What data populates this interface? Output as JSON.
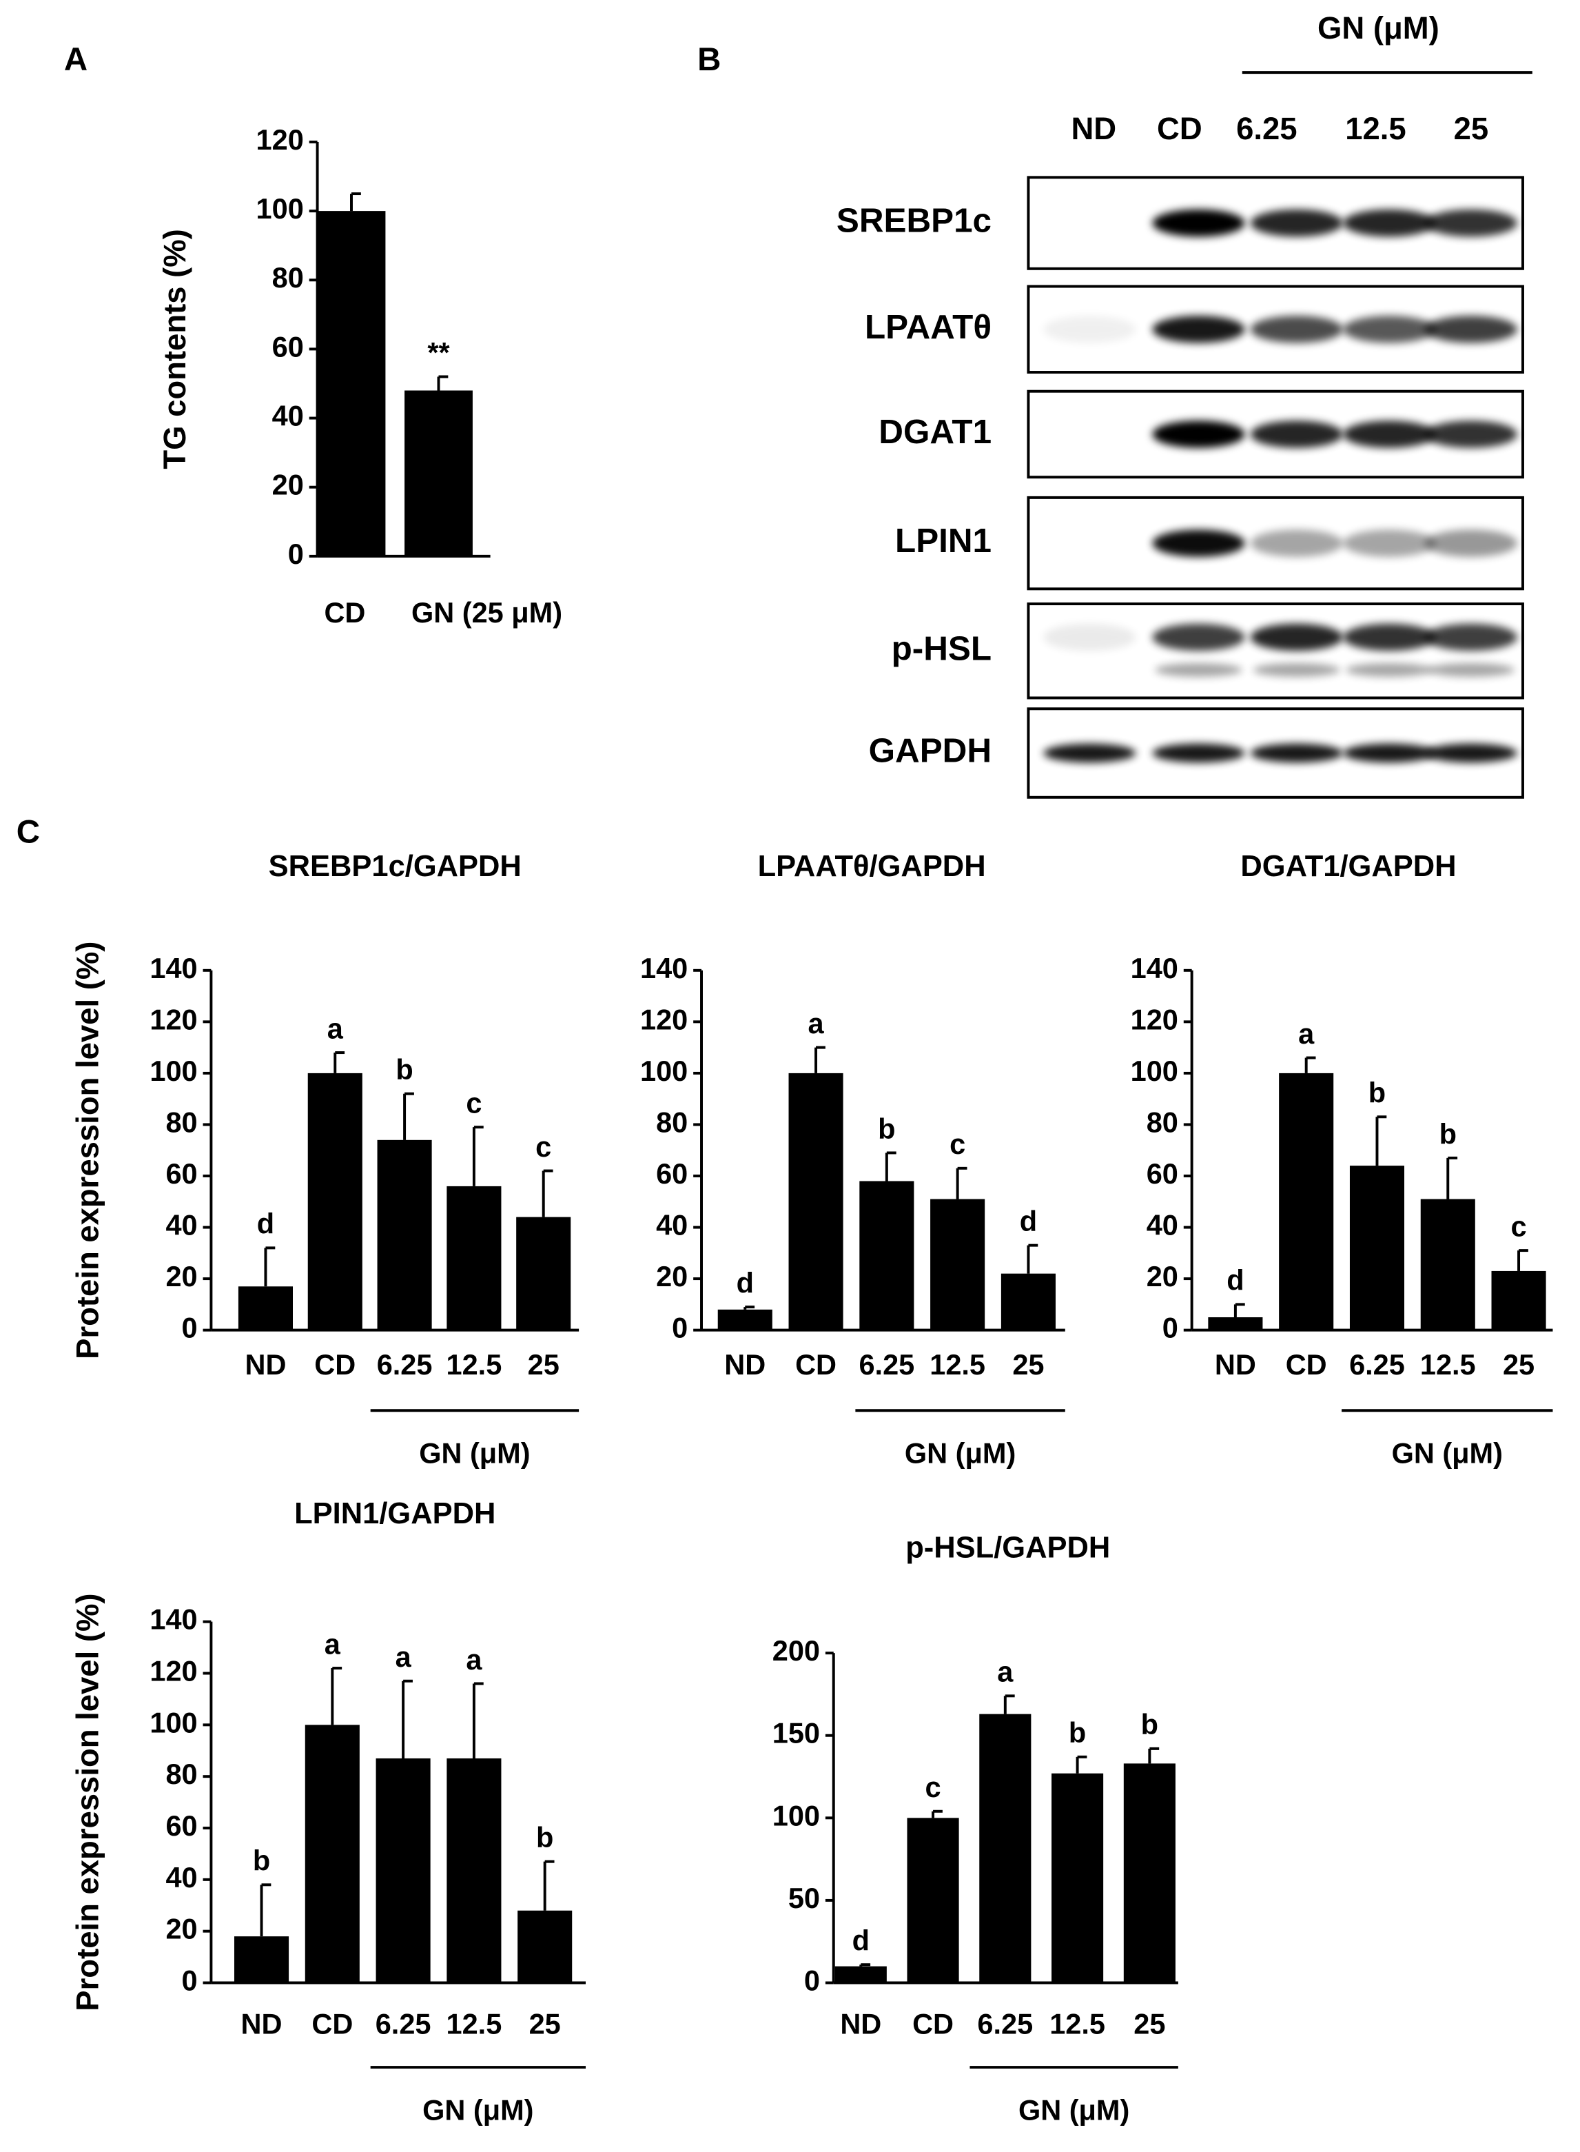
{
  "panels": [
    "A",
    "B",
    "C"
  ],
  "blot": {
    "group_label": "GN (μM)",
    "lanes": [
      "ND",
      "CD",
      "6.25",
      "12.5",
      "25"
    ],
    "proteins": [
      "SREBP1c",
      "LPAATθ",
      "DGAT1",
      "LPIN1",
      "p-HSL",
      "GAPDH"
    ]
  },
  "chart_data": [
    {
      "type": "bar",
      "ylabel": "TG contents (%)",
      "categories": [
        "CD",
        "GN (25 μM)"
      ],
      "values": [
        100,
        48
      ],
      "errors": [
        5,
        4
      ],
      "annotations": [
        null,
        "**"
      ],
      "color": "#000000",
      "ylim": [
        0,
        120
      ],
      "yticks": [
        0,
        20,
        40,
        60,
        80,
        100,
        120
      ]
    },
    {
      "type": "bar",
      "title": "SREBP1c/GAPDH",
      "ylabel": "Protein expression level (%)",
      "categories": [
        "ND",
        "CD",
        "6.25",
        "12.5",
        "25"
      ],
      "group_label": "GN (μM)",
      "values": [
        17,
        100,
        74,
        56,
        44
      ],
      "errors": [
        15,
        8,
        18,
        23,
        18
      ],
      "annotations": [
        "d",
        "a",
        "b",
        "c",
        "c"
      ],
      "color": "#000000",
      "ylim": [
        0,
        140
      ],
      "yticks": [
        0,
        20,
        40,
        60,
        80,
        100,
        120,
        140
      ]
    },
    {
      "type": "bar",
      "title": "LPAATθ/GAPDH",
      "categories": [
        "ND",
        "CD",
        "6.25",
        "12.5",
        "25"
      ],
      "group_label": "GN (μM)",
      "values": [
        8,
        100,
        58,
        51,
        22
      ],
      "errors": [
        1,
        10,
        11,
        12,
        11
      ],
      "annotations": [
        "d",
        "a",
        "b",
        "c",
        "d"
      ],
      "color": "#000000",
      "ylim": [
        0,
        140
      ],
      "yticks": [
        0,
        20,
        40,
        60,
        80,
        100,
        120,
        140
      ]
    },
    {
      "type": "bar",
      "title": "DGAT1/GAPDH",
      "categories": [
        "ND",
        "CD",
        "6.25",
        "12.5",
        "25"
      ],
      "group_label": "GN (μM)",
      "values": [
        5,
        100,
        64,
        51,
        23
      ],
      "errors": [
        5,
        6,
        19,
        16,
        8
      ],
      "annotations": [
        "d",
        "a",
        "b",
        "b",
        "c"
      ],
      "color": "#000000",
      "ylim": [
        0,
        140
      ],
      "yticks": [
        0,
        20,
        40,
        60,
        80,
        100,
        120,
        140
      ]
    },
    {
      "type": "bar",
      "title": "LPIN1/GAPDH",
      "ylabel": "Protein expression level (%)",
      "categories": [
        "ND",
        "CD",
        "6.25",
        "12.5",
        "25"
      ],
      "group_label": "GN (μM)",
      "values": [
        18,
        100,
        87,
        87,
        28
      ],
      "errors": [
        20,
        22,
        30,
        29,
        19
      ],
      "annotations": [
        "b",
        "a",
        "a",
        "a",
        "b"
      ],
      "color": "#000000",
      "ylim": [
        0,
        140
      ],
      "yticks": [
        0,
        20,
        40,
        60,
        80,
        100,
        120,
        140
      ]
    },
    {
      "type": "bar",
      "title": "p-HSL/GAPDH",
      "categories": [
        "ND",
        "CD",
        "6.25",
        "12.5",
        "25"
      ],
      "group_label": "GN (μM)",
      "values": [
        10,
        100,
        163,
        127,
        133
      ],
      "errors": [
        1,
        4,
        11,
        10,
        9
      ],
      "annotations": [
        "d",
        "c",
        "a",
        "b",
        "b"
      ],
      "color": "#000000",
      "ylim": [
        0,
        200
      ],
      "yticks": [
        0,
        50,
        100,
        150,
        200
      ]
    }
  ]
}
